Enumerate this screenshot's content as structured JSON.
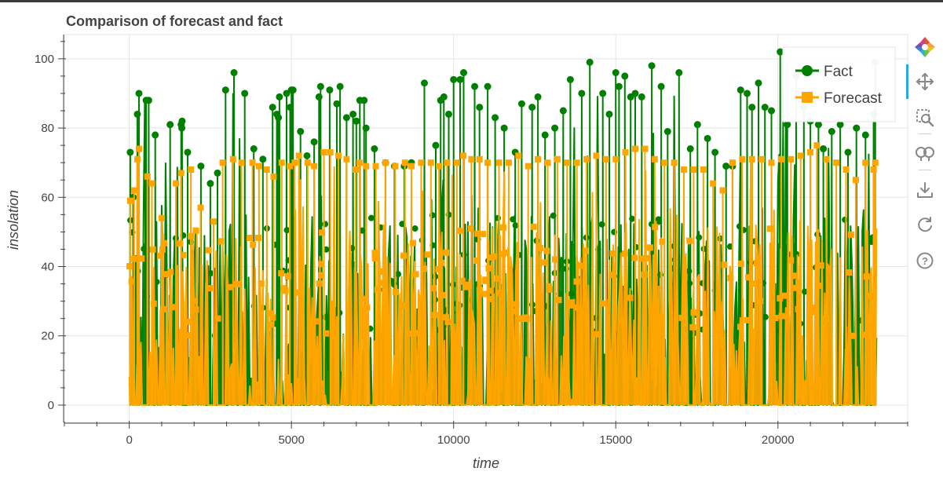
{
  "chart_data": {
    "type": "line",
    "title": "Comparison of forecast and fact",
    "xlabel": "time",
    "ylabel": "insolation",
    "xlim": [
      -2000,
      24000
    ],
    "ylim": [
      -5,
      107
    ],
    "x_ticks": [
      0,
      5000,
      10000,
      15000,
      20000
    ],
    "x_tick_labels": [
      "0",
      "5000",
      "10000",
      "15000",
      "20000"
    ],
    "y_ticks": [
      0,
      20,
      40,
      60,
      80,
      100
    ],
    "y_tick_labels": [
      "0",
      "20",
      "40",
      "60",
      "80",
      "100"
    ],
    "x_range": [
      0,
      23050
    ],
    "grid": true,
    "legend_position": "top-right",
    "series": [
      {
        "name": "Fact",
        "color": "#008000",
        "marker": "circle",
        "peaks": [
          [
            30,
            73
          ],
          [
            120,
            60
          ],
          [
            250,
            84
          ],
          [
            300,
            90
          ],
          [
            520,
            88
          ],
          [
            600,
            88
          ],
          [
            800,
            78
          ],
          [
            1260,
            81
          ],
          [
            1600,
            81
          ],
          [
            1630,
            82
          ],
          [
            1620,
            80
          ],
          [
            1800,
            73
          ],
          [
            2210,
            69
          ],
          [
            2500,
            64
          ],
          [
            2720,
            67
          ],
          [
            2970,
            91
          ],
          [
            3230,
            96
          ],
          [
            3560,
            90
          ],
          [
            3840,
            74
          ],
          [
            4120,
            71
          ],
          [
            4420,
            86
          ],
          [
            4550,
            84
          ],
          [
            4600,
            83
          ],
          [
            4630,
            89
          ],
          [
            4850,
            90
          ],
          [
            5000,
            91
          ],
          [
            4960,
            86
          ],
          [
            5050,
            91
          ],
          [
            5280,
            79
          ],
          [
            5480,
            72
          ],
          [
            5700,
            76
          ],
          [
            5850,
            89
          ],
          [
            5900,
            92
          ],
          [
            6180,
            91
          ],
          [
            6400,
            87
          ],
          [
            6500,
            92
          ],
          [
            6700,
            83
          ],
          [
            6900,
            84
          ],
          [
            7000,
            82
          ],
          [
            7110,
            88
          ],
          [
            7240,
            88
          ],
          [
            7300,
            80
          ],
          [
            7560,
            74
          ],
          [
            7900,
            70
          ],
          [
            8180,
            69
          ],
          [
            8480,
            69
          ],
          [
            8700,
            70
          ],
          [
            9100,
            93
          ],
          [
            9450,
            75
          ],
          [
            9600,
            88
          ],
          [
            9700,
            89
          ],
          [
            9850,
            84
          ],
          [
            10000,
            94
          ],
          [
            10200,
            94
          ],
          [
            10310,
            96
          ],
          [
            10650,
            92
          ],
          [
            10800,
            86
          ],
          [
            11050,
            92
          ],
          [
            11280,
            83
          ],
          [
            11560,
            80
          ],
          [
            11900,
            73
          ],
          [
            12100,
            87
          ],
          [
            12420,
            86
          ],
          [
            12600,
            89
          ],
          [
            12820,
            78
          ],
          [
            13120,
            80
          ],
          [
            13380,
            85
          ],
          [
            13600,
            94
          ],
          [
            13950,
            90
          ],
          [
            14200,
            99
          ],
          [
            14600,
            90
          ],
          [
            14800,
            84
          ],
          [
            15000,
            96
          ],
          [
            15100,
            92
          ],
          [
            15280,
            95
          ],
          [
            15460,
            89
          ],
          [
            15600,
            90
          ],
          [
            15800,
            89
          ],
          [
            16110,
            98
          ],
          [
            16400,
            92
          ],
          [
            16600,
            79
          ],
          [
            16950,
            96
          ],
          [
            17300,
            74
          ],
          [
            17520,
            81
          ],
          [
            17830,
            77
          ],
          [
            18060,
            73
          ],
          [
            18400,
            69
          ],
          [
            18600,
            69
          ],
          [
            18850,
            91
          ],
          [
            19050,
            90
          ],
          [
            19200,
            86
          ],
          [
            19400,
            93
          ],
          [
            19600,
            86
          ],
          [
            19800,
            85
          ],
          [
            20070,
            102
          ],
          [
            20290,
            81
          ],
          [
            20560,
            95
          ],
          [
            20800,
            86
          ],
          [
            21000,
            82
          ],
          [
            21250,
            81
          ],
          [
            21400,
            74
          ],
          [
            21660,
            79
          ],
          [
            21920,
            81
          ],
          [
            22160,
            73
          ],
          [
            22420,
            80
          ],
          [
            22700,
            78
          ],
          [
            22950,
            84
          ],
          [
            23000,
            99
          ]
        ]
      },
      {
        "name": "Forecast",
        "color": "#ffa500",
        "marker": "square",
        "peaks": [
          [
            30,
            59
          ],
          [
            150,
            62
          ],
          [
            250,
            71
          ],
          [
            300,
            74
          ],
          [
            560,
            66
          ],
          [
            700,
            64
          ],
          [
            1000,
            54
          ],
          [
            1440,
            64
          ],
          [
            1600,
            67
          ],
          [
            1900,
            68
          ],
          [
            2200,
            57
          ],
          [
            2600,
            53
          ],
          [
            2880,
            70
          ],
          [
            3200,
            71
          ],
          [
            3460,
            70
          ],
          [
            3800,
            70
          ],
          [
            4000,
            69
          ],
          [
            4240,
            68
          ],
          [
            4450,
            66
          ],
          [
            4700,
            70
          ],
          [
            4950,
            69
          ],
          [
            5100,
            70
          ],
          [
            5230,
            72
          ],
          [
            5500,
            70
          ],
          [
            5700,
            69
          ],
          [
            6000,
            73
          ],
          [
            6200,
            73
          ],
          [
            6450,
            72
          ],
          [
            6700,
            71
          ],
          [
            6980,
            68
          ],
          [
            7100,
            70
          ],
          [
            7300,
            69
          ],
          [
            7600,
            69
          ],
          [
            7900,
            70
          ],
          [
            8200,
            69
          ],
          [
            8500,
            70
          ],
          [
            8700,
            69
          ],
          [
            9000,
            70
          ],
          [
            9300,
            70
          ],
          [
            9550,
            69
          ],
          [
            9800,
            70
          ],
          [
            10100,
            70
          ],
          [
            10300,
            72
          ],
          [
            10550,
            71
          ],
          [
            10800,
            71
          ],
          [
            11050,
            70
          ],
          [
            11400,
            70
          ],
          [
            11700,
            70
          ],
          [
            12000,
            72
          ],
          [
            12300,
            69
          ],
          [
            12600,
            71
          ],
          [
            12900,
            70
          ],
          [
            13200,
            71
          ],
          [
            13500,
            70
          ],
          [
            13800,
            70
          ],
          [
            14100,
            71
          ],
          [
            14400,
            72
          ],
          [
            14700,
            71
          ],
          [
            15000,
            71
          ],
          [
            15300,
            73
          ],
          [
            15600,
            74
          ],
          [
            15900,
            74
          ],
          [
            16200,
            71
          ],
          [
            16500,
            70
          ],
          [
            16800,
            70
          ],
          [
            17100,
            68
          ],
          [
            17400,
            68
          ],
          [
            17700,
            68
          ],
          [
            18000,
            64
          ],
          [
            18300,
            62
          ],
          [
            18600,
            70
          ],
          [
            18900,
            71
          ],
          [
            19200,
            71
          ],
          [
            19500,
            71
          ],
          [
            19800,
            70
          ],
          [
            20100,
            71
          ],
          [
            20400,
            71
          ],
          [
            20700,
            72
          ],
          [
            21000,
            73
          ],
          [
            21200,
            75
          ],
          [
            21500,
            71
          ],
          [
            21800,
            70
          ],
          [
            22100,
            68
          ],
          [
            22400,
            65
          ],
          [
            22700,
            70
          ],
          [
            22950,
            68
          ],
          [
            23000,
            70
          ]
        ]
      }
    ]
  },
  "toolbar": {
    "tools": [
      {
        "name": "bokeh-logo-icon"
      },
      {
        "name": "pan-icon"
      },
      {
        "name": "box-zoom-icon"
      },
      {
        "name": "wheel-zoom-icon"
      },
      {
        "name": "save-icon"
      },
      {
        "name": "reset-icon"
      },
      {
        "name": "help-icon"
      }
    ]
  }
}
